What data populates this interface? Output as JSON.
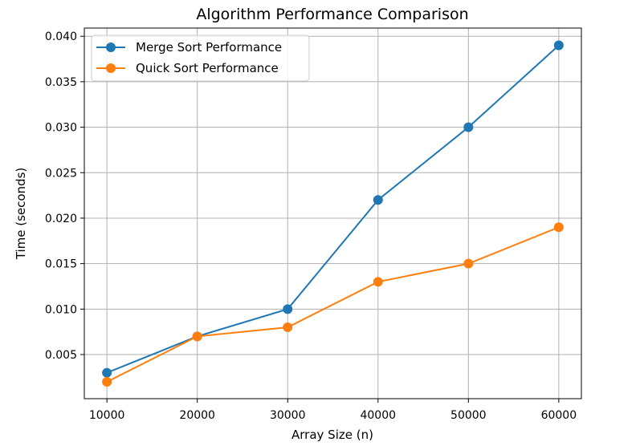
{
  "chart_data": {
    "type": "line",
    "title": "Algorithm Performance Comparison",
    "xlabel": "Array Size (n)",
    "ylabel": "Time (seconds)",
    "x": [
      10000,
      20000,
      30000,
      40000,
      50000,
      60000
    ],
    "xticks": [
      10000,
      20000,
      30000,
      40000,
      50000,
      60000
    ],
    "xtick_labels": [
      "10000",
      "20000",
      "30000",
      "40000",
      "50000",
      "60000"
    ],
    "yticks": [
      0.005,
      0.01,
      0.015,
      0.02,
      0.025,
      0.03,
      0.035,
      0.04
    ],
    "ytick_labels": [
      "0.005",
      "0.010",
      "0.015",
      "0.020",
      "0.025",
      "0.030",
      "0.035",
      "0.040"
    ],
    "xlim": [
      7500,
      62500
    ],
    "ylim": [
      0.00015,
      0.0409
    ],
    "grid": true,
    "legend_position": "top-left",
    "series": [
      {
        "name": "Merge Sort Performance",
        "color": "#1f77b4",
        "marker": "circle",
        "values": [
          0.003,
          0.007,
          0.01,
          0.022,
          0.03,
          0.039
        ]
      },
      {
        "name": "Quick Sort Performance",
        "color": "#ff7f0e",
        "marker": "circle",
        "values": [
          0.002,
          0.007,
          0.008,
          0.013,
          0.015,
          0.019
        ]
      }
    ]
  }
}
